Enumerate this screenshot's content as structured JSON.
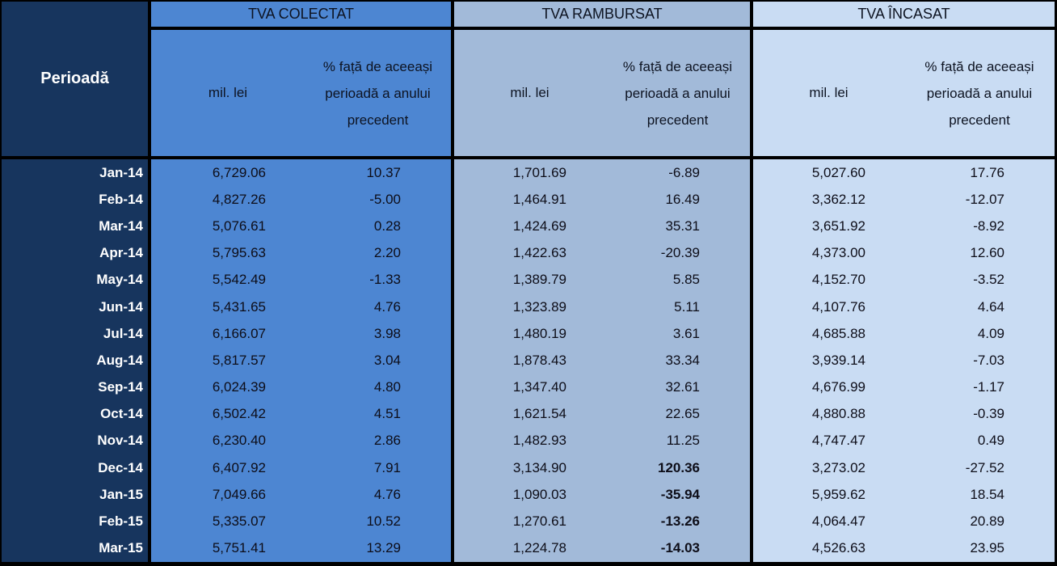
{
  "table": {
    "period_header": "Perioadă",
    "groups": [
      {
        "title": "TVA COLECTAT"
      },
      {
        "title": "TVA RAMBURSAT"
      },
      {
        "title": "TVA ÎNCASAT"
      }
    ],
    "subheader": {
      "amount": "mil. lei",
      "pct": "% față de aceeași perioadă a anului precedent"
    },
    "rows": [
      {
        "period": "Jan-14",
        "cells": [
          "6,729.06",
          "10.37",
          "1,701.69",
          "-6.89",
          "5,027.60",
          "17.76"
        ],
        "bold": []
      },
      {
        "period": "Feb-14",
        "cells": [
          "4,827.26",
          "-5.00",
          "1,464.91",
          "16.49",
          "3,362.12",
          "-12.07"
        ],
        "bold": []
      },
      {
        "period": "Mar-14",
        "cells": [
          "5,076.61",
          "0.28",
          "1,424.69",
          "35.31",
          "3,651.92",
          "-8.92"
        ],
        "bold": []
      },
      {
        "period": "Apr-14",
        "cells": [
          "5,795.63",
          "2.20",
          "1,422.63",
          "-20.39",
          "4,373.00",
          "12.60"
        ],
        "bold": []
      },
      {
        "period": "May-14",
        "cells": [
          "5,542.49",
          "-1.33",
          "1,389.79",
          "5.85",
          "4,152.70",
          "-3.52"
        ],
        "bold": []
      },
      {
        "period": "Jun-14",
        "cells": [
          "5,431.65",
          "4.76",
          "1,323.89",
          "5.11",
          "4,107.76",
          "4.64"
        ],
        "bold": []
      },
      {
        "period": "Jul-14",
        "cells": [
          "6,166.07",
          "3.98",
          "1,480.19",
          "3.61",
          "4,685.88",
          "4.09"
        ],
        "bold": []
      },
      {
        "period": "Aug-14",
        "cells": [
          "5,817.57",
          "3.04",
          "1,878.43",
          "33.34",
          "3,939.14",
          "-7.03"
        ],
        "bold": []
      },
      {
        "period": "Sep-14",
        "cells": [
          "6,024.39",
          "4.80",
          "1,347.40",
          "32.61",
          "4,676.99",
          "-1.17"
        ],
        "bold": []
      },
      {
        "period": "Oct-14",
        "cells": [
          "6,502.42",
          "4.51",
          "1,621.54",
          "22.65",
          "4,880.88",
          "-0.39"
        ],
        "bold": []
      },
      {
        "period": "Nov-14",
        "cells": [
          "6,230.40",
          "2.86",
          "1,482.93",
          "11.25",
          "4,747.47",
          "0.49"
        ],
        "bold": []
      },
      {
        "period": "Dec-14",
        "cells": [
          "6,407.92",
          "7.91",
          "3,134.90",
          "120.36",
          "3,273.02",
          "-27.52"
        ],
        "bold": [
          3
        ]
      },
      {
        "period": "Jan-15",
        "cells": [
          "7,049.66",
          "4.76",
          "1,090.03",
          "-35.94",
          "5,959.62",
          "18.54"
        ],
        "bold": [
          3
        ]
      },
      {
        "period": "Feb-15",
        "cells": [
          "5,335.07",
          "10.52",
          "1,270.61",
          "-13.26",
          "4,064.47",
          "20.89"
        ],
        "bold": [
          3
        ]
      },
      {
        "period": "Mar-15",
        "cells": [
          "5,751.41",
          "13.29",
          "1,224.78",
          "-14.03",
          "4,526.63",
          "23.95"
        ],
        "bold": [
          3
        ]
      }
    ]
  },
  "colors": {
    "navy": "#17355E",
    "colectat_bg": "#4D86D2",
    "rambursat_bg": "#A2BAD9",
    "incasat_bg": "#C9DCF3",
    "line": "#000000",
    "header_text": "#0D1321",
    "cell_text": "#0D0D18",
    "period_text": "#FFFFFF"
  },
  "chart_data": {
    "type": "table",
    "title": "TVA colectat / rambursat / încasat",
    "categories": [
      "Jan-14",
      "Feb-14",
      "Mar-14",
      "Apr-14",
      "May-14",
      "Jun-14",
      "Jul-14",
      "Aug-14",
      "Sep-14",
      "Oct-14",
      "Nov-14",
      "Dec-14",
      "Jan-15",
      "Feb-15",
      "Mar-15"
    ],
    "series": [
      {
        "name": "TVA COLECTAT mil. lei",
        "values": [
          6729.06,
          4827.26,
          5076.61,
          5795.63,
          5542.49,
          5431.65,
          6166.07,
          5817.57,
          6024.39,
          6502.42,
          6230.4,
          6407.92,
          7049.66,
          5335.07,
          5751.41
        ]
      },
      {
        "name": "TVA COLECTAT % față de aceeași perioadă a anului precedent",
        "values": [
          10.37,
          -5.0,
          0.28,
          2.2,
          -1.33,
          4.76,
          3.98,
          3.04,
          4.8,
          4.51,
          2.86,
          7.91,
          4.76,
          10.52,
          13.29
        ]
      },
      {
        "name": "TVA RAMBURSAT mil. lei",
        "values": [
          1701.69,
          1464.91,
          1424.69,
          1422.63,
          1389.79,
          1323.89,
          1480.19,
          1878.43,
          1347.4,
          1621.54,
          1482.93,
          3134.9,
          1090.03,
          1270.61,
          1224.78
        ]
      },
      {
        "name": "TVA RAMBURSAT % față de aceeași perioadă a anului precedent",
        "values": [
          -6.89,
          16.49,
          35.31,
          -20.39,
          5.85,
          5.11,
          3.61,
          33.34,
          32.61,
          22.65,
          11.25,
          120.36,
          -35.94,
          -13.26,
          -14.03
        ]
      },
      {
        "name": "TVA ÎNCASAT mil. lei",
        "values": [
          5027.6,
          3362.12,
          3651.92,
          4373.0,
          4152.7,
          4107.76,
          4685.88,
          3939.14,
          4676.99,
          4880.88,
          4747.47,
          3273.02,
          5959.62,
          4064.47,
          4526.63
        ]
      },
      {
        "name": "TVA ÎNCASAT % față de aceeași perioadă a anului precedent",
        "values": [
          17.76,
          -12.07,
          -8.92,
          12.6,
          -3.52,
          4.64,
          4.09,
          -7.03,
          -1.17,
          -0.39,
          0.49,
          -27.52,
          18.54,
          20.89,
          23.95
        ]
      }
    ]
  }
}
